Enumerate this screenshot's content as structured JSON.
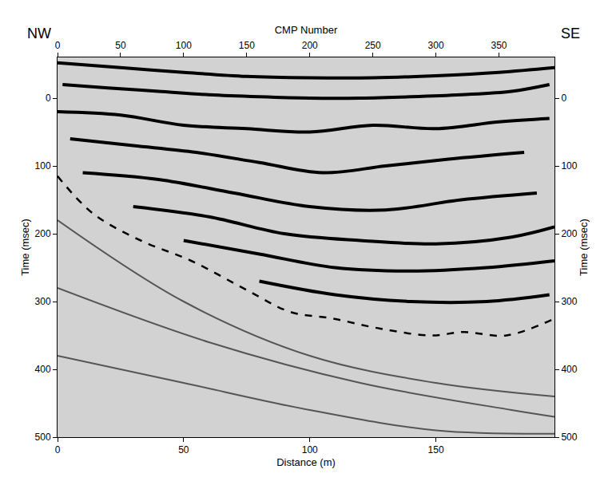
{
  "chart_data": {
    "type": "line",
    "xlabel": "Distance (m)",
    "x2label": "CMP Number",
    "ylabel": "Time (msec)",
    "annotations": [
      "NW",
      "SE"
    ],
    "xlim": [
      0,
      197
    ],
    "xticks": [
      0,
      50,
      100,
      150
    ],
    "x2lim": [
      0,
      394
    ],
    "x2ticks": [
      0,
      50,
      100,
      150,
      200,
      250,
      300,
      350
    ],
    "ylim": [
      500,
      -60
    ],
    "yticks": [
      0,
      100,
      200,
      300,
      400,
      500
    ],
    "grid": false,
    "series": [
      {
        "color": "#000000",
        "line_style": "solid",
        "x": [
          0,
          25,
          50,
          75,
          100,
          125,
          150,
          175,
          197
        ],
        "values": [
          -52,
          -45,
          -38,
          -32,
          -30,
          -30,
          -33,
          -38,
          -45
        ]
      },
      {
        "color": "#000000",
        "line_style": "solid",
        "x": [
          2,
          20,
          40,
          60,
          80,
          100,
          120,
          140,
          160,
          180,
          195
        ],
        "values": [
          -20,
          -15,
          -10,
          -5,
          -2,
          0,
          0,
          -2,
          -5,
          -10,
          -20
        ]
      },
      {
        "color": "#000000",
        "line_style": "solid",
        "x": [
          0,
          25,
          50,
          75,
          100,
          125,
          150,
          175,
          195
        ],
        "values": [
          20,
          25,
          40,
          45,
          50,
          40,
          45,
          35,
          30
        ]
      },
      {
        "color": "#000000",
        "line_style": "solid",
        "x": [
          5,
          30,
          55,
          80,
          105,
          130,
          155,
          185
        ],
        "values": [
          60,
          70,
          80,
          95,
          110,
          100,
          90,
          80
        ]
      },
      {
        "color": "#000000",
        "line_style": "solid",
        "x": [
          10,
          40,
          70,
          100,
          130,
          160,
          190
        ],
        "values": [
          110,
          120,
          140,
          160,
          165,
          150,
          140
        ]
      },
      {
        "color": "#000000",
        "line_style": "solid",
        "x": [
          30,
          60,
          90,
          120,
          150,
          180,
          197
        ],
        "values": [
          160,
          175,
          200,
          210,
          215,
          205,
          190
        ]
      },
      {
        "color": "#000000",
        "line_style": "solid",
        "x": [
          50,
          80,
          110,
          140,
          170,
          197
        ],
        "values": [
          210,
          230,
          250,
          255,
          250,
          240
        ]
      },
      {
        "color": "#000000",
        "line_style": "solid",
        "x": [
          80,
          110,
          140,
          170,
          195
        ],
        "values": [
          270,
          290,
          300,
          300,
          290
        ]
      },
      {
        "color": "#555555",
        "line_style": "solid",
        "x": [
          0,
          50,
          100,
          150,
          197
        ],
        "values": [
          180,
          300,
          380,
          420,
          440
        ]
      },
      {
        "color": "#555555",
        "line_style": "solid",
        "x": [
          0,
          60,
          120,
          180,
          197
        ],
        "values": [
          280,
          360,
          420,
          460,
          470
        ]
      },
      {
        "color": "#555555",
        "line_style": "solid",
        "x": [
          0,
          50,
          100,
          150,
          197
        ],
        "values": [
          380,
          420,
          460,
          490,
          495
        ]
      },
      {
        "color": "#000000",
        "line_style": "dash",
        "x": [
          0,
          14,
          33,
          53,
          76,
          92,
          109,
          128,
          148,
          161,
          178,
          197
        ],
        "values": [
          115,
          170,
          210,
          240,
          285,
          315,
          325,
          340,
          350,
          345,
          350,
          325
        ]
      }
    ]
  }
}
